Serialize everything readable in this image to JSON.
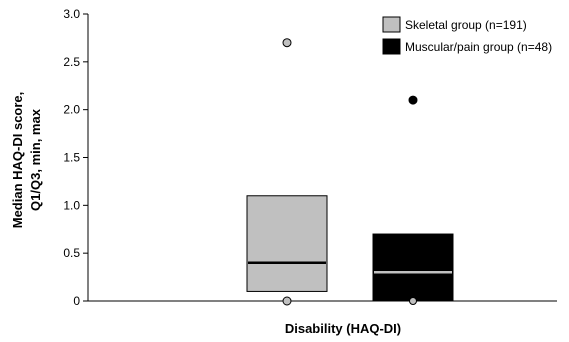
{
  "chart_data": {
    "type": "boxplot",
    "xlabel": "Disability (HAQ-DI)",
    "ylabel_lines": [
      "Median HAQ-DI score,",
      "Q1/Q3, min, max"
    ],
    "ylim": [
      0,
      3.0
    ],
    "yticks": [
      "0",
      "0.5",
      "1.0",
      "1.5",
      "2.0",
      "2.5",
      "3.0"
    ],
    "ytick_values": [
      0,
      0.5,
      1.0,
      1.5,
      2.0,
      2.5,
      3.0
    ],
    "legend_position": "top-right",
    "series": [
      {
        "name": "Skeletal group (n=191)",
        "color": "#c0c0c0",
        "median_color": "#000000",
        "q1": 0.1,
        "median": 0.4,
        "q3": 1.1,
        "min": 0.0,
        "max": 2.7
      },
      {
        "name": "Muscular/pain group (n=48)",
        "color": "#000000",
        "median_color": "#c0c0c0",
        "q1": 0.0,
        "median": 0.3,
        "q3": 0.7,
        "min": 0.0,
        "max": 2.1
      }
    ]
  }
}
